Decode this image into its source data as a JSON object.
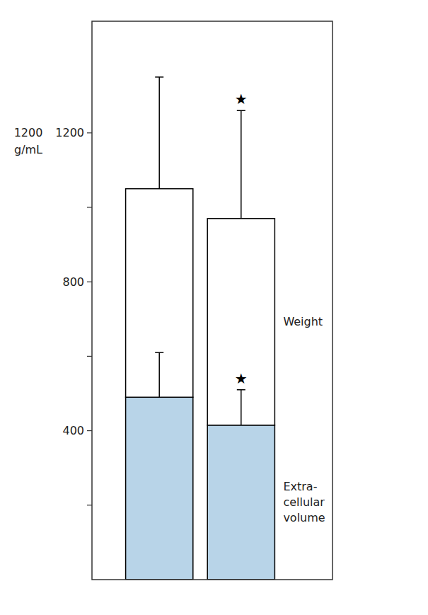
{
  "chart_data": {
    "type": "bar",
    "stacked": true,
    "categories": [
      null,
      null
    ],
    "series": [
      {
        "color": "#b8d4e8",
        "values": [
          490,
          415
        ],
        "errors": [
          120,
          95
        ],
        "significance": [
          null,
          "★"
        ],
        "label_lines": [
          "Extra-",
          "cellular",
          "volume"
        ]
      },
      {
        "color": "#ffffff",
        "values": [
          560,
          555
        ],
        "errors": [
          300,
          290
        ],
        "significance": [
          null,
          "★"
        ],
        "label_lines": [
          "Weight"
        ]
      }
    ],
    "ylabel": [
      "1200",
      "g/mL"
    ],
    "ylim": [
      0,
      1500
    ],
    "yticks": [
      {
        "value": 200,
        "label": null
      },
      400,
      {
        "value": 600,
        "label": null
      },
      800,
      {
        "value": 1000,
        "label": null
      },
      1200
    ],
    "tick_labels": "y",
    "grid": false
  }
}
